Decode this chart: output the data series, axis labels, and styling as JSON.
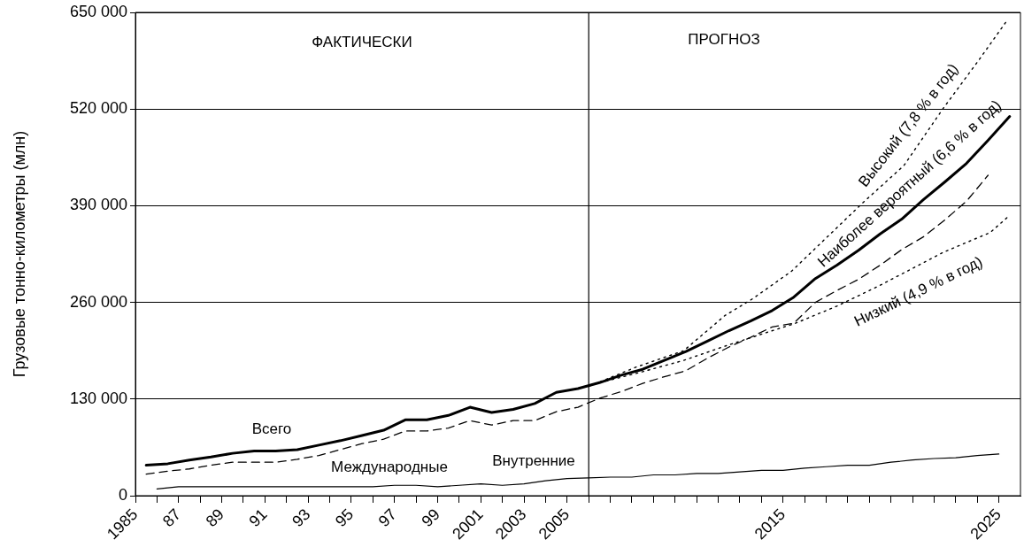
{
  "chart_data": {
    "type": "line",
    "ylabel": "Грузовые тонно-километры (млн)",
    "xlim": [
      1985,
      2026
    ],
    "ylim": [
      0,
      650000
    ],
    "xticks": [
      1985,
      {
        "value": 1986,
        "label": null
      },
      {
        "value": 1987,
        "label": "87"
      },
      {
        "value": 1988,
        "label": null
      },
      {
        "value": 1989,
        "label": "89"
      },
      {
        "value": 1990,
        "label": null
      },
      {
        "value": 1991,
        "label": "91"
      },
      {
        "value": 1992,
        "label": null
      },
      {
        "value": 1993,
        "label": "93"
      },
      {
        "value": 1994,
        "label": null
      },
      {
        "value": 1995,
        "label": "95"
      },
      {
        "value": 1996,
        "label": null
      },
      {
        "value": 1997,
        "label": "97"
      },
      {
        "value": 1998,
        "label": null
      },
      {
        "value": 1999,
        "label": "99"
      },
      {
        "value": 2000,
        "label": null
      },
      2001,
      {
        "value": 2002,
        "label": null
      },
      2003,
      {
        "value": 2004,
        "label": null
      },
      2005,
      {
        "value": 2006,
        "label": null
      },
      {
        "value": 2007,
        "label": null
      },
      {
        "value": 2008,
        "label": null
      },
      {
        "value": 2009,
        "label": null
      },
      {
        "value": 2010,
        "label": null
      },
      {
        "value": 2011,
        "label": null
      },
      {
        "value": 2012,
        "label": null
      },
      {
        "value": 2013,
        "label": null
      },
      {
        "value": 2014,
        "label": null
      },
      2015,
      {
        "value": 2016,
        "label": null
      },
      {
        "value": 2017,
        "label": null
      },
      {
        "value": 2018,
        "label": null
      },
      {
        "value": 2019,
        "label": null
      },
      {
        "value": 2020,
        "label": null
      },
      {
        "value": 2021,
        "label": null
      },
      {
        "value": 2022,
        "label": null
      },
      {
        "value": 2023,
        "label": null
      },
      {
        "value": 2024,
        "label": null
      },
      2025
    ],
    "yticks": [
      0,
      {
        "value": 130000,
        "label": "130 000"
      },
      {
        "value": 260000,
        "label": "260 000"
      },
      {
        "value": 390000,
        "label": "390 000"
      },
      {
        "value": 520000,
        "label": "520 000"
      },
      {
        "value": 650000,
        "label": "650 000"
      }
    ],
    "grid": "y",
    "legend": false,
    "series": [
      {
        "color": "#000000",
        "line_style": "solid",
        "x": [
          1985.5,
          1986.5,
          1987.5,
          1988.5,
          1989.5,
          1990.5,
          1991.5,
          1992.5,
          1993.5,
          1994.5,
          1995.5,
          1996.5,
          1997.5,
          1998.5,
          1999.5,
          2000.5,
          2001.5,
          2002.5,
          2003.5,
          2004.5,
          2005.5,
          2006.5,
          2007.5,
          2008.5,
          2009.5,
          2010.5,
          2011.5,
          2012.5,
          2013.5,
          2014.5,
          2015.5,
          2016.5,
          2017.5,
          2018.5,
          2019.5,
          2020.5,
          2021.5,
          2022.5,
          2023.5,
          2024.5,
          2025.5
        ],
        "values": [
          41000,
          43000,
          48000,
          52000,
          57000,
          60000,
          60000,
          62000,
          68000,
          74000,
          81000,
          88000,
          102000,
          102000,
          108000,
          119000,
          112000,
          116000,
          124000,
          139000,
          144000,
          152000,
          162000,
          170000,
          182000,
          194000,
          208000,
          222000,
          235000,
          249000,
          267000,
          292000,
          310000,
          330000,
          352000,
          372000,
          398000,
          422000,
          447000,
          478000,
          510000
        ]
      },
      {
        "color": "#000000",
        "line_style": "dashed",
        "x": [
          1985.5,
          1986.5,
          1987.5,
          1988.5,
          1989.5,
          1990.5,
          1991.5,
          1992.5,
          1993.5,
          1994.5,
          1995.5,
          1996.5,
          1997.5,
          1998.5,
          1999.5,
          2000.5,
          2001.5,
          2002.5,
          2003.5,
          2004.5,
          2005.5,
          2006.5,
          2007.5,
          2008.5,
          2009.5,
          2010.5,
          2011.5,
          2012.5,
          2013.5,
          2014.5,
          2015.5,
          2016.5,
          2017.5,
          2018.5,
          2019.5,
          2020.5,
          2021.5,
          2022.5,
          2023.5,
          2024.5
        ],
        "values": [
          29000,
          33000,
          36000,
          41000,
          45000,
          45000,
          45000,
          49000,
          54000,
          62000,
          70000,
          76000,
          87000,
          87000,
          91000,
          101000,
          95000,
          101000,
          101000,
          113000,
          119000,
          131000,
          140000,
          151000,
          160000,
          168000,
          185000,
          200000,
          213000,
          227000,
          232000,
          260000,
          276000,
          291000,
          310000,
          331000,
          348000,
          371000,
          396000,
          431000
        ]
      },
      {
        "color": "#000000",
        "line_style": "solid",
        "x": [
          1986,
          1987,
          1988,
          1989,
          1990,
          1991,
          1992,
          1993,
          1994,
          1995,
          1996,
          1997,
          1998,
          1999,
          2000,
          2001,
          2002,
          2003,
          2004,
          2005,
          2006,
          2007,
          2008,
          2009,
          2010,
          2011,
          2012,
          2013,
          2014,
          2015,
          2016,
          2017,
          2018,
          2019,
          2020,
          2021,
          2022,
          2023,
          2024,
          2025
        ],
        "values": [
          9000,
          12000,
          12000,
          12000,
          12000,
          12000,
          12000,
          12000,
          12000,
          12000,
          12000,
          14000,
          14000,
          12000,
          14000,
          16000,
          14000,
          16000,
          20000,
          23000,
          24000,
          25000,
          25000,
          28000,
          28000,
          30000,
          30000,
          32000,
          34000,
          34000,
          37000,
          39000,
          41000,
          41000,
          45000,
          48000,
          50000,
          51000,
          54000,
          56000
        ]
      },
      {
        "color": "#000000",
        "line_style": "dotted",
        "x": [
          2006,
          2008.2,
          2010.4,
          2012.3,
          2013.6,
          2015.4,
          2018.7,
          2020.6,
          2022.4,
          2024.1,
          2025.4
        ],
        "values": [
          147000,
          173000,
          195000,
          242000,
          265000,
          302000,
          394000,
          444000,
          520000,
          587000,
          640000
        ]
      },
      {
        "color": "#000000",
        "line_style": "dotted",
        "x": [
          2006.8,
          2007.6,
          2008.4,
          2010.4,
          2012.4,
          2014.4,
          2015.5,
          2017.5,
          2019.5,
          2022.4,
          2024.6,
          2025.5
        ],
        "values": [
          154000,
          160000,
          166000,
          182000,
          202000,
          221000,
          231000,
          255000,
          283000,
          327000,
          354000,
          377000
        ]
      }
    ],
    "ref_lines": [
      {
        "axis": "x",
        "value": 2006
      }
    ],
    "annotations": [
      "ФАКТИЧЕСКИ",
      "ПРОГНОЗ",
      "Всего",
      "Международные",
      "Внутренние",
      "Высокий (7,8 % в год)",
      "Наиболее вероятный (6,6 % в год)",
      "Низкий (4,9 % в год)"
    ]
  }
}
